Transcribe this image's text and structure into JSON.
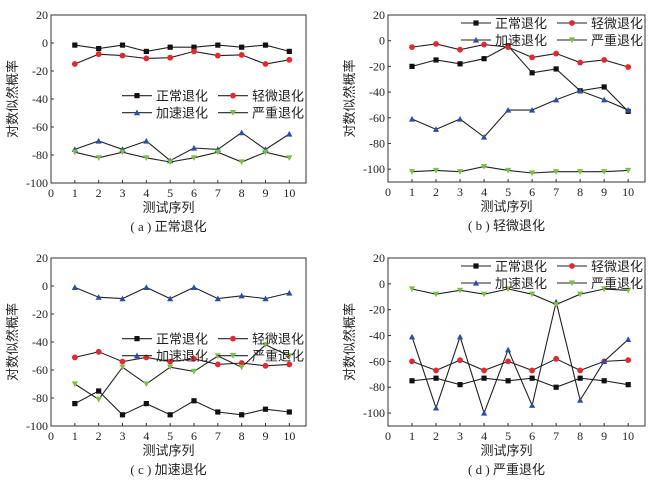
{
  "chart_data": [
    {
      "type": "line",
      "caption": "( a ) 正常退化",
      "xlabel": "测试序列",
      "ylabel": "对数似然概率",
      "xlim": [
        0,
        10.7
      ],
      "ylim": [
        -100,
        20
      ],
      "xticks": [
        0,
        1,
        2,
        3,
        4,
        5,
        6,
        7,
        8,
        9,
        10
      ],
      "yticks": [
        -100,
        -80,
        -60,
        -40,
        -20,
        0,
        20
      ],
      "legend_position": "center-right",
      "x": [
        1,
        2,
        3,
        4,
        5,
        6,
        7,
        8,
        9,
        10
      ],
      "series": [
        {
          "name": "正常退化",
          "marker": "square",
          "color": "#111111",
          "values": [
            -1.5,
            -4,
            -1.5,
            -6,
            -3,
            -3,
            -1.5,
            -3,
            -1.5,
            -6
          ]
        },
        {
          "name": "轻微退化",
          "marker": "circle",
          "color": "#e8262b",
          "values": [
            -15,
            -8,
            -9,
            -11,
            -10.5,
            -6,
            -9,
            -8.5,
            -15,
            -12
          ]
        },
        {
          "name": "加速退化",
          "marker": "triangle-up",
          "color": "#2a4fa8",
          "values": [
            -76,
            -70,
            -76,
            -70,
            -84,
            -75,
            -76,
            -64,
            -76,
            -65
          ]
        },
        {
          "name": "严重退化",
          "marker": "triangle-down",
          "color": "#7bc142",
          "values": [
            -78,
            -82,
            -78,
            -82,
            -85,
            -82,
            -78,
            -85,
            -78,
            -82
          ]
        }
      ]
    },
    {
      "type": "line",
      "caption": "( b ) 轻微退化",
      "xlabel": "测试序列",
      "ylabel": "对数似然概率",
      "xlim": [
        0,
        10.7
      ],
      "ylim": [
        -110,
        20
      ],
      "xticks": [
        0,
        1,
        2,
        3,
        4,
        5,
        6,
        7,
        8,
        9,
        10
      ],
      "yticks": [
        -100,
        -80,
        -60,
        -40,
        -20,
        0,
        20
      ],
      "legend_position": "top-right",
      "x": [
        1,
        2,
        3,
        4,
        5,
        6,
        7,
        8,
        9,
        10
      ],
      "series": [
        {
          "name": "正常退化",
          "marker": "square",
          "color": "#111111",
          "values": [
            -20,
            -15,
            -18,
            -14,
            -4,
            -25,
            -22,
            -39,
            -36,
            -55
          ]
        },
        {
          "name": "轻微退化",
          "marker": "circle",
          "color": "#e8262b",
          "values": [
            -5,
            -2.5,
            -7,
            -3,
            -5,
            -13,
            -10,
            -17,
            -15,
            -20.5
          ]
        },
        {
          "name": "加速退化",
          "marker": "triangle-up",
          "color": "#2a4fa8",
          "values": [
            -61,
            -69,
            -61,
            -75,
            -54,
            -54,
            -46,
            -39,
            -46,
            -54
          ]
        },
        {
          "name": "严重退化",
          "marker": "triangle-down",
          "color": "#7bc142",
          "values": [
            -102,
            -101,
            -102,
            -98,
            -101,
            -103,
            -102,
            -102,
            -102,
            -101
          ]
        }
      ]
    },
    {
      "type": "line",
      "caption": "( c ) 加速退化",
      "xlabel": "测试序列",
      "ylabel": "对数似然概率",
      "xlim": [
        0,
        10.7
      ],
      "ylim": [
        -100,
        20
      ],
      "xticks": [
        0,
        1,
        2,
        3,
        4,
        5,
        6,
        7,
        8,
        9,
        10
      ],
      "yticks": [
        -100,
        -80,
        -60,
        -40,
        -20,
        0,
        20
      ],
      "legend_position": "center-right",
      "x": [
        1,
        2,
        3,
        4,
        5,
        6,
        7,
        8,
        9,
        10
      ],
      "series": [
        {
          "name": "正常退化",
          "marker": "square",
          "color": "#111111",
          "values": [
            -84,
            -75,
            -92,
            -84,
            -92,
            -82,
            -90,
            -92,
            -88,
            -90
          ]
        },
        {
          "name": "轻微退化",
          "marker": "circle",
          "color": "#e8262b",
          "values": [
            -51,
            -47,
            -54,
            -51,
            -54,
            -52,
            -56,
            -55,
            -57,
            -56
          ]
        },
        {
          "name": "加速退化",
          "marker": "triangle-up",
          "color": "#2a4fa8",
          "values": [
            -1,
            -8,
            -9,
            -1,
            -9,
            -1,
            -9,
            -7,
            -9,
            -5
          ]
        },
        {
          "name": "严重退化",
          "marker": "triangle-down",
          "color": "#7bc142",
          "values": [
            -70,
            -81,
            -58,
            -70,
            -58,
            -61,
            -50,
            -58,
            -42,
            -50
          ]
        }
      ]
    },
    {
      "type": "line",
      "caption": "( d ) 严重退化",
      "xlabel": "测试序列",
      "ylabel": "对数似然概率",
      "xlim": [
        0,
        10.7
      ],
      "ylim": [
        -110,
        20
      ],
      "xticks": [
        0,
        1,
        2,
        3,
        4,
        5,
        6,
        7,
        8,
        9,
        10
      ],
      "yticks": [
        -100,
        -80,
        -60,
        -40,
        -20,
        0,
        20
      ],
      "legend_position": "top-right",
      "x": [
        1,
        2,
        3,
        4,
        5,
        6,
        7,
        8,
        9,
        10
      ],
      "series": [
        {
          "name": "正常退化",
          "marker": "square",
          "color": "#111111",
          "values": [
            -75,
            -73,
            -78,
            -73,
            -75,
            -73,
            -80,
            -73,
            -75,
            -78
          ]
        },
        {
          "name": "轻微退化",
          "marker": "circle",
          "color": "#e8262b",
          "values": [
            -60,
            -67,
            -59,
            -67,
            -60,
            -67,
            -58,
            -67,
            -60,
            -59
          ]
        },
        {
          "name": "加速退化",
          "marker": "triangle-up",
          "color": "#2a4fa8",
          "values": [
            -41,
            -96,
            -41,
            -100,
            -51,
            -94,
            -14,
            -90,
            -60,
            -43
          ]
        },
        {
          "name": "严重退化",
          "marker": "triangle-down",
          "color": "#7bc142",
          "values": [
            -4,
            -8,
            -5,
            -8,
            -4,
            -8,
            -16,
            -8,
            -4,
            -5
          ]
        }
      ]
    }
  ]
}
